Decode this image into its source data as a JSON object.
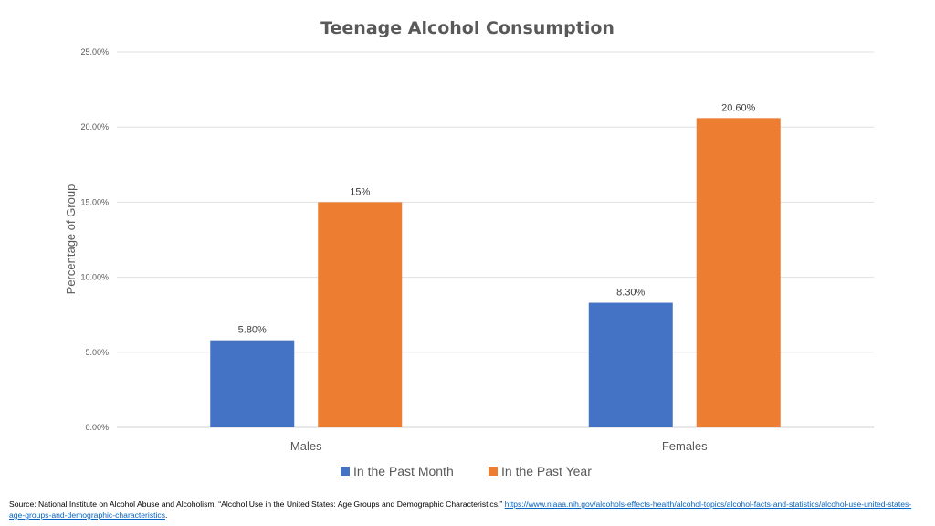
{
  "chart_data": {
    "type": "bar",
    "title": "Teenage Alcohol Consumption",
    "xlabel": "",
    "ylabel": "Percentage of Group",
    "categories": [
      "Males",
      "Females"
    ],
    "series": [
      {
        "name": "In the Past Month",
        "values": [
          5.8,
          8.3
        ],
        "labels": [
          "5.80%",
          "8.30%"
        ],
        "color": "#4472c4"
      },
      {
        "name": "In the Past Year",
        "values": [
          15.0,
          20.6
        ],
        "labels": [
          "15%",
          "20.60%"
        ],
        "color": "#ed7d31"
      }
    ],
    "ylim": [
      0,
      25
    ],
    "yticks": [
      0,
      5,
      10,
      15,
      20,
      25
    ],
    "ytick_labels": [
      "0.00%",
      "5.00%",
      "10.00%",
      "15.00%",
      "20.00%",
      "25.00%"
    ],
    "grid": true,
    "legend_position": "bottom"
  },
  "source": {
    "text": "Source: National Institute on Alcohol Abuse and Alcoholism. “Alcohol Use in the United States: Age Groups and Demographic Characteristics.” ",
    "link": "https://www.niaaa.nih.gov/alcohols-effects-health/alcohol-topics/alcohol-facts-and-statistics/alcohol-use-united-states-age-groups-and-demographic-characteristics",
    "trailing": "."
  }
}
